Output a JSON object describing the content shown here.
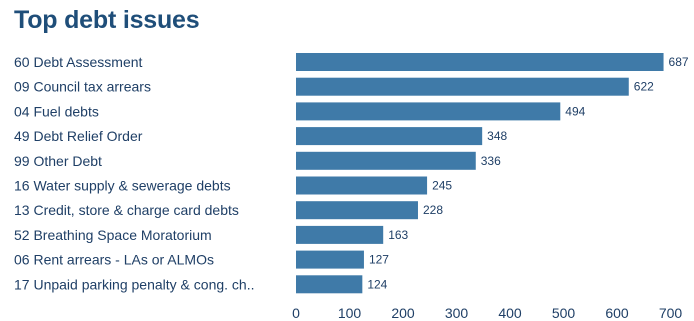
{
  "title": "Top debt issues",
  "chart_data": {
    "type": "bar",
    "orientation": "horizontal",
    "title": "Top debt issues",
    "categories": [
      "60 Debt Assessment",
      "09 Council tax arrears",
      "04 Fuel debts",
      "49 Debt Relief Order",
      "99 Other Debt",
      "16 Water supply & sewerage debts",
      "13 Credit, store & charge card debts",
      "52 Breathing Space Moratorium",
      "06 Rent arrears - LAs or ALMOs",
      "17 Unpaid parking penalty & cong. ch.."
    ],
    "values": [
      687,
      622,
      494,
      348,
      336,
      245,
      228,
      163,
      127,
      124
    ],
    "xlim": [
      0,
      700
    ],
    "xticks": [
      0,
      100,
      200,
      300,
      400,
      500,
      600,
      700
    ],
    "bar_color": "#3f7aa8",
    "grid": false,
    "xlabel": "",
    "ylabel": ""
  }
}
